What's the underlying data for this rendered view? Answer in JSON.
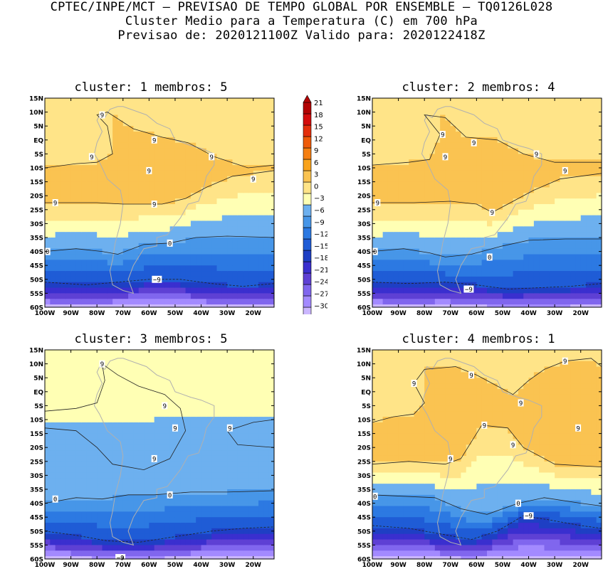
{
  "header": {
    "line1": "CPTEC/INPE/MCT – PREVISAO DE TEMPO GLOBAL POR ENSEMBLE – TQ0126L028",
    "line2": "Cluster Medio para a Temperatura (C) em 700 hPa",
    "line3": "Previsao de: 2020121100Z    Valido para: 2020122418Z"
  },
  "colors": {
    "scale": [
      "#e4d8ff",
      "#cbb7ff",
      "#a38aff",
      "#8066ee",
      "#5e40d4",
      "#3a2fcf",
      "#1e3fc4",
      "#1f5cd6",
      "#2c79e2",
      "#4796e8",
      "#6db0ef",
      "#ffffb4",
      "#ffe488",
      "#fac351",
      "#f9a31c",
      "#f57f11",
      "#ef5b09",
      "#e42f0c",
      "#d40c0c",
      "#b30303"
    ],
    "land_outline": "#b0b0b0",
    "contour": "#222222"
  },
  "colorbar": {
    "labels": [
      "21",
      "18",
      "15",
      "12",
      "9",
      "6",
      "3",
      "0",
      "−3",
      "−6",
      "−9",
      "−12",
      "−15",
      "−18",
      "−21",
      "−24",
      "−27",
      "−30"
    ]
  },
  "axes": {
    "lat_labels": [
      "15N",
      "10N",
      "5N",
      "EQ",
      "5S",
      "10S",
      "15S",
      "20S",
      "25S",
      "30S",
      "35S",
      "40S",
      "45S",
      "50S",
      "55S",
      "60S"
    ],
    "lon_labels": [
      "100W",
      "90W",
      "80W",
      "70W",
      "60W",
      "50W",
      "40W",
      "30W",
      "20W"
    ]
  },
  "chart_data": [
    {
      "type": "heatmap",
      "title": "cluster: 1   membros: 5",
      "lon_range": [
        -100,
        -12
      ],
      "lat_range": [
        -60,
        15
      ],
      "isotherms": [
        {
          "level": 9,
          "points": [
            [
              -100,
              -10
            ],
            [
              -88,
              -8.5
            ],
            [
              -80,
              -8
            ],
            [
              -74,
              -5
            ],
            [
              -76,
              5
            ],
            [
              -80,
              9
            ],
            [
              -76,
              10
            ],
            [
              -66,
              4
            ],
            [
              -55,
              1
            ],
            [
              -45,
              -1
            ],
            [
              -35,
              -6
            ],
            [
              -22,
              -10
            ],
            [
              -12,
              -9
            ]
          ]
        },
        {
          "level": 9,
          "points": [
            [
              -100,
              -22.5
            ],
            [
              -80,
              -22.5
            ],
            [
              -70,
              -23
            ],
            [
              -62,
              -23
            ],
            [
              -55,
              -23
            ],
            [
              -46,
              -21
            ],
            [
              -38,
              -17
            ],
            [
              -28,
              -13
            ],
            [
              -12,
              -11
            ]
          ]
        },
        {
          "level": 0,
          "points": [
            [
              -100,
              -40
            ],
            [
              -88,
              -39
            ],
            [
              -78,
              -40
            ],
            [
              -72,
              -41
            ],
            [
              -62,
              -37.5
            ],
            [
              -52,
              -37
            ],
            [
              -42,
              -35
            ],
            [
              -30,
              -34.5
            ],
            [
              -12,
              -35
            ]
          ]
        },
        {
          "level": -9,
          "points": [
            [
              -100,
              -51
            ],
            [
              -84,
              -52
            ],
            [
              -72,
              -51
            ],
            [
              -60,
              -50
            ],
            [
              -48,
              -50
            ],
            [
              -36,
              -51.5
            ],
            [
              -24,
              -52.5
            ],
            [
              -12,
              -51.5
            ]
          ]
        }
      ],
      "labels": [
        {
          "text": "9",
          "lon": -78,
          "lat": 9
        },
        {
          "text": "9",
          "lon": -58,
          "lat": 0
        },
        {
          "text": "9",
          "lon": -82,
          "lat": -6
        },
        {
          "text": "9",
          "lon": -60,
          "lat": -11
        },
        {
          "text": "9",
          "lon": -36,
          "lat": -6
        },
        {
          "text": "9",
          "lon": -20,
          "lat": -14
        },
        {
          "text": "9",
          "lon": -96,
          "lat": -22.5
        },
        {
          "text": "9",
          "lon": -58,
          "lat": -23
        },
        {
          "text": "0",
          "lon": -99,
          "lat": -40
        },
        {
          "text": "0",
          "lon": -52,
          "lat": -37
        },
        {
          "text": "−9",
          "lon": -57,
          "lat": -50
        }
      ]
    },
    {
      "type": "heatmap",
      "title": "cluster: 2   membros: 4",
      "lon_range": [
        -100,
        -12
      ],
      "lat_range": [
        -60,
        15
      ],
      "isotherms": [
        {
          "level": 9,
          "points": [
            [
              -100,
              -9
            ],
            [
              -86,
              -8
            ],
            [
              -78,
              -7
            ],
            [
              -74,
              2
            ],
            [
              -80,
              9
            ],
            [
              -72,
              8
            ],
            [
              -64,
              1
            ],
            [
              -52,
              0
            ],
            [
              -42,
              -5
            ],
            [
              -30,
              -8
            ],
            [
              -12,
              -8
            ]
          ]
        },
        {
          "level": 9,
          "points": [
            [
              -100,
              -22.5
            ],
            [
              -84,
              -22.5
            ],
            [
              -70,
              -22
            ],
            [
              -60,
              -23
            ],
            [
              -54,
              -26
            ],
            [
              -48,
              -23
            ],
            [
              -38,
              -18
            ],
            [
              -28,
              -14
            ],
            [
              -12,
              -12
            ]
          ]
        },
        {
          "level": 0,
          "points": [
            [
              -100,
              -40
            ],
            [
              -88,
              -39
            ],
            [
              -78,
              -40.5
            ],
            [
              -72,
              -42
            ],
            [
              -62,
              -41
            ],
            [
              -50,
              -38
            ],
            [
              -40,
              -36
            ],
            [
              -26,
              -35.5
            ],
            [
              -12,
              -35.5
            ]
          ]
        },
        {
          "level": -9,
          "points": [
            [
              -100,
              -51
            ],
            [
              -86,
              -51.5
            ],
            [
              -72,
              -51
            ],
            [
              -60,
              -52
            ],
            [
              -48,
              -53.5
            ],
            [
              -36,
              -53
            ],
            [
              -24,
              -52.5
            ],
            [
              -12,
              -51.5
            ]
          ]
        }
      ],
      "labels": [
        {
          "text": "9",
          "lon": -73,
          "lat": 2
        },
        {
          "text": "9",
          "lon": -61,
          "lat": -1
        },
        {
          "text": "9",
          "lon": -72,
          "lat": -6
        },
        {
          "text": "9",
          "lon": -37,
          "lat": -5
        },
        {
          "text": "9",
          "lon": -26,
          "lat": -11
        },
        {
          "text": "9",
          "lon": -98,
          "lat": -22.5
        },
        {
          "text": "9",
          "lon": -54,
          "lat": -26
        },
        {
          "text": "0",
          "lon": -99,
          "lat": -40
        },
        {
          "text": "0",
          "lon": -55,
          "lat": -42
        },
        {
          "text": "−9",
          "lon": -63,
          "lat": -53.5
        }
      ]
    },
    {
      "type": "heatmap",
      "title": "cluster: 3   membros: 5",
      "lon_range": [
        -100,
        -12
      ],
      "lat_range": [
        -60,
        15
      ],
      "isotherms": [
        {
          "level": 9,
          "points": [
            [
              -100,
              -7
            ],
            [
              -88,
              -6
            ],
            [
              -80,
              -4
            ],
            [
              -77,
              4
            ],
            [
              -78,
              10
            ],
            [
              -72,
              6
            ],
            [
              -64,
              2
            ],
            [
              -54,
              -1
            ],
            [
              -48,
              -6
            ],
            [
              -46,
              -14
            ],
            [
              -52,
              -24
            ],
            [
              -62,
              -28
            ],
            [
              -74,
              -26
            ],
            [
              -80,
              -20
            ],
            [
              -88,
              -14
            ],
            [
              -100,
              -13
            ]
          ]
        },
        {
          "level": 9,
          "points": [
            [
              -12,
              -10
            ],
            [
              -20,
              -11
            ],
            [
              -30,
              -14
            ],
            [
              -26,
              -19
            ],
            [
              -12,
              -20
            ]
          ]
        },
        {
          "level": 0,
          "points": [
            [
              -100,
              -40
            ],
            [
              -88,
              -38
            ],
            [
              -78,
              -38.5
            ],
            [
              -68,
              -37
            ],
            [
              -58,
              -37
            ],
            [
              -44,
              -36
            ],
            [
              -30,
              -36
            ],
            [
              -12,
              -35.5
            ]
          ]
        },
        {
          "level": -9,
          "points": [
            [
              -100,
              -50
            ],
            [
              -88,
              -51.5
            ],
            [
              -76,
              -53.5
            ],
            [
              -64,
              -54
            ],
            [
              -50,
              -52
            ],
            [
              -36,
              -50
            ],
            [
              -24,
              -49
            ],
            [
              -12,
              -48.5
            ]
          ]
        }
      ],
      "labels": [
        {
          "text": "9",
          "lon": -78,
          "lat": 10
        },
        {
          "text": "9",
          "lon": -54,
          "lat": -5
        },
        {
          "text": "9",
          "lon": -50,
          "lat": -13
        },
        {
          "text": "9",
          "lon": -29,
          "lat": -13
        },
        {
          "text": "9",
          "lon": -58,
          "lat": -24
        },
        {
          "text": "0",
          "lon": -96,
          "lat": -38.5
        },
        {
          "text": "0",
          "lon": -52,
          "lat": -37
        },
        {
          "text": "−9",
          "lon": -71,
          "lat": -59.5
        }
      ]
    },
    {
      "type": "heatmap",
      "title": "cluster: 4   membros: 1",
      "lon_range": [
        -100,
        -12
      ],
      "lat_range": [
        -60,
        15
      ],
      "isotherms": [
        {
          "level": 9,
          "points": [
            [
              -100,
              -11
            ],
            [
              -92,
              -9
            ],
            [
              -84,
              -8
            ],
            [
              -80,
              -4
            ],
            [
              -84,
              3
            ],
            [
              -80,
              8
            ],
            [
              -68,
              9
            ],
            [
              -60,
              6
            ],
            [
              -54,
              3
            ],
            [
              -46,
              -1
            ],
            [
              -40,
              4
            ],
            [
              -34,
              8
            ],
            [
              -26,
              11
            ],
            [
              -16,
              12
            ],
            [
              -12,
              9
            ]
          ]
        },
        {
          "level": 9,
          "points": [
            [
              -100,
              -26
            ],
            [
              -86,
              -25
            ],
            [
              -72,
              -26
            ],
            [
              -66,
              -24
            ],
            [
              -62,
              -18
            ],
            [
              -58,
              -12
            ],
            [
              -48,
              -13
            ],
            [
              -42,
              -20
            ],
            [
              -30,
              -26
            ],
            [
              -12,
              -27
            ]
          ]
        },
        {
          "level": 0,
          "points": [
            [
              -100,
              -37
            ],
            [
              -88,
              -37.5
            ],
            [
              -76,
              -38
            ],
            [
              -66,
              -42
            ],
            [
              -56,
              -44
            ],
            [
              -44,
              -40
            ],
            [
              -34,
              -38
            ],
            [
              -20,
              -40
            ],
            [
              -12,
              -41
            ]
          ]
        },
        {
          "level": -9,
          "points": [
            [
              -100,
              -48
            ],
            [
              -86,
              -49
            ],
            [
              -74,
              -51
            ],
            [
              -62,
              -53
            ],
            [
              -52,
              -50
            ],
            [
              -42,
              -44.5
            ],
            [
              -32,
              -46
            ],
            [
              -20,
              -48
            ],
            [
              -12,
              -49
            ]
          ]
        }
      ],
      "labels": [
        {
          "text": "9",
          "lon": -84,
          "lat": 3
        },
        {
          "text": "9",
          "lon": -62,
          "lat": 6
        },
        {
          "text": "9",
          "lon": -26,
          "lat": 11
        },
        {
          "text": "9",
          "lon": -43,
          "lat": -4
        },
        {
          "text": "9",
          "lon": -57,
          "lat": -12
        },
        {
          "text": "9",
          "lon": -21,
          "lat": -13
        },
        {
          "text": "9",
          "lon": -46,
          "lat": -19
        },
        {
          "text": "9",
          "lon": -70,
          "lat": -24
        },
        {
          "text": "0",
          "lon": -99,
          "lat": -37.5
        },
        {
          "text": "0",
          "lon": -44,
          "lat": -40
        },
        {
          "text": "−9",
          "lon": -40,
          "lat": -44.5
        }
      ]
    }
  ]
}
